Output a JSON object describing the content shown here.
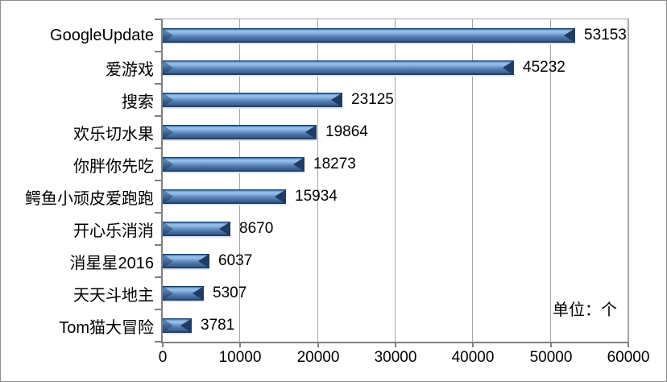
{
  "chart_data": {
    "type": "bar",
    "orientation": "horizontal",
    "title": "",
    "xlabel": "",
    "ylabel": "",
    "categories": [
      "GoogleUpdate",
      "爱游戏",
      "搜索",
      "欢乐切水果",
      "你胖你先吃",
      "鳄鱼小顽皮爱跑跑",
      "开心乐消消",
      "消星星2016",
      "天天斗地主",
      "Tom猫大冒险"
    ],
    "values": [
      53153,
      45232,
      23125,
      19864,
      18273,
      15934,
      8670,
      6037,
      5307,
      3781
    ],
    "data_labels": [
      "53153",
      "45232",
      "23125",
      "19864",
      "18273",
      "15934",
      "8670",
      "6037",
      "5307",
      "3781"
    ],
    "x_ticks": [
      0,
      10000,
      20000,
      30000,
      40000,
      50000,
      60000
    ],
    "xlim": [
      0,
      60000
    ],
    "unit_label": "单位：个",
    "legend_position": "none",
    "grid": true,
    "bar_style": "3d-bevel",
    "colors": {
      "bar": "#4F81BD",
      "bar_highlight": "#9CC2EA",
      "bar_dark": "#17375E",
      "gridline": "#A6A6A6",
      "axis": "#7F7F7F",
      "text": "#000000",
      "background": "#FFFFFF"
    }
  }
}
